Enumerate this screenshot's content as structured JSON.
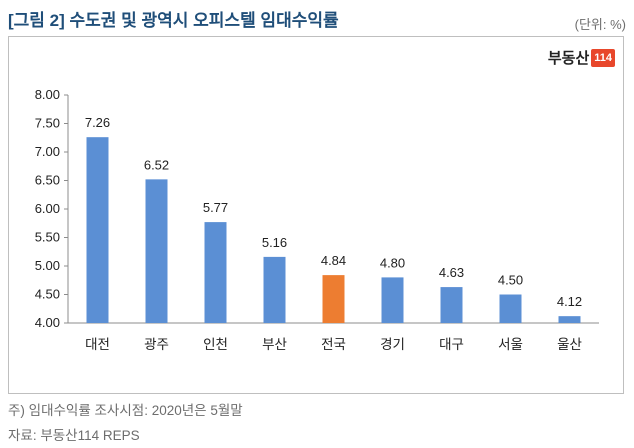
{
  "title": "[그림 2] 수도권 및 광역시 오피스텔 임대수익률",
  "unit": "(단위: %)",
  "logo": {
    "text": "부동산",
    "number": "114"
  },
  "notes": {
    "note1": "주) 임대수익률 조사시점: 2020년은 5월말",
    "note2": "자료: 부동산114 REPS"
  },
  "colors": {
    "bar": "#5b8fd4",
    "highlight": "#ed7d31",
    "title": "#1f4e79"
  },
  "chart_data": {
    "type": "bar",
    "categories": [
      "대전",
      "광주",
      "인천",
      "부산",
      "전국",
      "경기",
      "대구",
      "서울",
      "울산"
    ],
    "values": [
      7.26,
      6.52,
      5.77,
      5.16,
      4.84,
      4.8,
      4.63,
      4.5,
      4.12
    ],
    "highlight_category": "전국",
    "ylim": [
      4.0,
      8.0
    ],
    "yticks": [
      "4.00",
      "4.50",
      "5.00",
      "5.50",
      "6.00",
      "6.50",
      "7.00",
      "7.50",
      "8.00"
    ],
    "ytick_values": [
      4.0,
      4.5,
      5.0,
      5.5,
      6.0,
      6.5,
      7.0,
      7.5,
      8.0
    ],
    "grid": false,
    "legend": "none"
  }
}
